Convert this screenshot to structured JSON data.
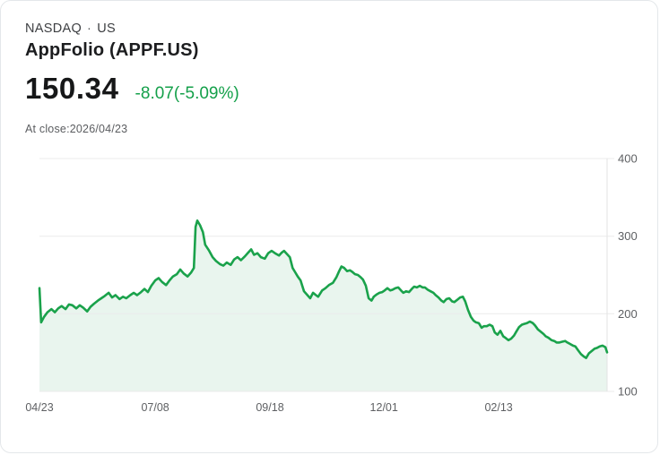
{
  "header": {
    "exchange": "NASDAQ",
    "separator": "·",
    "region": "US",
    "title": "AppFolio (APPF.US)"
  },
  "quote": {
    "price": "150.34",
    "change": "-8.07(-5.09%)",
    "as_of": "At close:2026/04/23"
  },
  "colors": {
    "change_green": "#14a04a",
    "line_green": "#1aa24b",
    "fill_green": "#e9f5ee",
    "grid": "#ebebeb",
    "axis_line": "#e3e3e3",
    "axis_label": "#5e6063"
  },
  "chart_data": {
    "type": "area",
    "title": "APPF.US one-year price chart",
    "ylim": [
      100,
      400
    ],
    "y_ticks": [
      400,
      300,
      200,
      100
    ],
    "y_axis_side": "right",
    "grid": "horizontal",
    "x_ticks": [
      {
        "label": "04/23",
        "t": 0.0
      },
      {
        "label": "07/08",
        "t": 0.204
      },
      {
        "label": "09/18",
        "t": 0.406
      },
      {
        "label": "12/01",
        "t": 0.607
      },
      {
        "label": "02/13",
        "t": 0.809
      }
    ],
    "points": [
      [
        0.0,
        233
      ],
      [
        0.003,
        189
      ],
      [
        0.008,
        196
      ],
      [
        0.014,
        202
      ],
      [
        0.021,
        206
      ],
      [
        0.027,
        202
      ],
      [
        0.033,
        207
      ],
      [
        0.039,
        210
      ],
      [
        0.046,
        206
      ],
      [
        0.052,
        212
      ],
      [
        0.058,
        211
      ],
      [
        0.065,
        207
      ],
      [
        0.071,
        211
      ],
      [
        0.077,
        208
      ],
      [
        0.084,
        203
      ],
      [
        0.09,
        209
      ],
      [
        0.096,
        213
      ],
      [
        0.103,
        217
      ],
      [
        0.109,
        220
      ],
      [
        0.115,
        223
      ],
      [
        0.122,
        227
      ],
      [
        0.128,
        221
      ],
      [
        0.134,
        224
      ],
      [
        0.141,
        219
      ],
      [
        0.147,
        222
      ],
      [
        0.153,
        220
      ],
      [
        0.16,
        224
      ],
      [
        0.166,
        227
      ],
      [
        0.172,
        224
      ],
      [
        0.179,
        228
      ],
      [
        0.185,
        232
      ],
      [
        0.191,
        228
      ],
      [
        0.197,
        236
      ],
      [
        0.204,
        243
      ],
      [
        0.21,
        246
      ],
      [
        0.216,
        241
      ],
      [
        0.223,
        237
      ],
      [
        0.229,
        243
      ],
      [
        0.235,
        248
      ],
      [
        0.242,
        251
      ],
      [
        0.248,
        257
      ],
      [
        0.254,
        252
      ],
      [
        0.261,
        248
      ],
      [
        0.267,
        253
      ],
      [
        0.272,
        259
      ],
      [
        0.275,
        312
      ],
      [
        0.278,
        320
      ],
      [
        0.283,
        314
      ],
      [
        0.288,
        305
      ],
      [
        0.292,
        289
      ],
      [
        0.299,
        281
      ],
      [
        0.305,
        273
      ],
      [
        0.311,
        268
      ],
      [
        0.318,
        264
      ],
      [
        0.324,
        262
      ],
      [
        0.33,
        266
      ],
      [
        0.337,
        263
      ],
      [
        0.343,
        270
      ],
      [
        0.349,
        273
      ],
      [
        0.355,
        269
      ],
      [
        0.362,
        274
      ],
      [
        0.368,
        279
      ],
      [
        0.373,
        283
      ],
      [
        0.378,
        276
      ],
      [
        0.384,
        278
      ],
      [
        0.39,
        273
      ],
      [
        0.397,
        271
      ],
      [
        0.403,
        278
      ],
      [
        0.409,
        281
      ],
      [
        0.415,
        278
      ],
      [
        0.422,
        275
      ],
      [
        0.427,
        279
      ],
      [
        0.431,
        281
      ],
      [
        0.436,
        277
      ],
      [
        0.441,
        273
      ],
      [
        0.446,
        259
      ],
      [
        0.45,
        254
      ],
      [
        0.455,
        248
      ],
      [
        0.46,
        243
      ],
      [
        0.466,
        229
      ],
      [
        0.472,
        224
      ],
      [
        0.477,
        220
      ],
      [
        0.482,
        227
      ],
      [
        0.487,
        224
      ],
      [
        0.491,
        222
      ],
      [
        0.498,
        230
      ],
      [
        0.504,
        233
      ],
      [
        0.51,
        237
      ],
      [
        0.517,
        240
      ],
      [
        0.523,
        247
      ],
      [
        0.528,
        255
      ],
      [
        0.532,
        261
      ],
      [
        0.537,
        259
      ],
      [
        0.542,
        255
      ],
      [
        0.547,
        256
      ],
      [
        0.551,
        254
      ],
      [
        0.556,
        251
      ],
      [
        0.561,
        250
      ],
      [
        0.566,
        247
      ],
      [
        0.57,
        244
      ],
      [
        0.575,
        236
      ],
      [
        0.58,
        220
      ],
      [
        0.585,
        217
      ],
      [
        0.589,
        222
      ],
      [
        0.594,
        225
      ],
      [
        0.599,
        227
      ],
      [
        0.604,
        228
      ],
      [
        0.608,
        230
      ],
      [
        0.613,
        233
      ],
      [
        0.618,
        230
      ],
      [
        0.622,
        231
      ],
      [
        0.627,
        233
      ],
      [
        0.632,
        234
      ],
      [
        0.637,
        230
      ],
      [
        0.641,
        227
      ],
      [
        0.646,
        229
      ],
      [
        0.651,
        228
      ],
      [
        0.656,
        232
      ],
      [
        0.66,
        235
      ],
      [
        0.665,
        234
      ],
      [
        0.67,
        236
      ],
      [
        0.675,
        234
      ],
      [
        0.679,
        234
      ],
      [
        0.684,
        231
      ],
      [
        0.689,
        229
      ],
      [
        0.694,
        227
      ],
      [
        0.698,
        224
      ],
      [
        0.703,
        221
      ],
      [
        0.708,
        217
      ],
      [
        0.712,
        215
      ],
      [
        0.717,
        219
      ],
      [
        0.722,
        220
      ],
      [
        0.727,
        216
      ],
      [
        0.731,
        215
      ],
      [
        0.736,
        218
      ],
      [
        0.741,
        221
      ],
      [
        0.746,
        222
      ],
      [
        0.75,
        216
      ],
      [
        0.755,
        205
      ],
      [
        0.76,
        196
      ],
      [
        0.765,
        191
      ],
      [
        0.769,
        189
      ],
      [
        0.774,
        188
      ],
      [
        0.779,
        182
      ],
      [
        0.783,
        184
      ],
      [
        0.788,
        184
      ],
      [
        0.793,
        186
      ],
      [
        0.798,
        184
      ],
      [
        0.802,
        176
      ],
      [
        0.807,
        173
      ],
      [
        0.812,
        178
      ],
      [
        0.817,
        171
      ],
      [
        0.821,
        169
      ],
      [
        0.826,
        166
      ],
      [
        0.831,
        168
      ],
      [
        0.836,
        172
      ],
      [
        0.84,
        177
      ],
      [
        0.845,
        183
      ],
      [
        0.85,
        186
      ],
      [
        0.854,
        187
      ],
      [
        0.859,
        188
      ],
      [
        0.864,
        190
      ],
      [
        0.869,
        188
      ],
      [
        0.873,
        185
      ],
      [
        0.878,
        180
      ],
      [
        0.883,
        177
      ],
      [
        0.888,
        174
      ],
      [
        0.892,
        171
      ],
      [
        0.897,
        169
      ],
      [
        0.902,
        166
      ],
      [
        0.907,
        165
      ],
      [
        0.911,
        163
      ],
      [
        0.916,
        163
      ],
      [
        0.921,
        164
      ],
      [
        0.926,
        165
      ],
      [
        0.93,
        163
      ],
      [
        0.935,
        161
      ],
      [
        0.94,
        159
      ],
      [
        0.944,
        158
      ],
      [
        0.949,
        153
      ],
      [
        0.954,
        148
      ],
      [
        0.959,
        145
      ],
      [
        0.963,
        143
      ],
      [
        0.968,
        149
      ],
      [
        0.973,
        152
      ],
      [
        0.978,
        155
      ],
      [
        0.982,
        156
      ],
      [
        0.987,
        158
      ],
      [
        0.992,
        159
      ],
      [
        0.997,
        157
      ],
      [
        1.0,
        150.34
      ]
    ]
  }
}
